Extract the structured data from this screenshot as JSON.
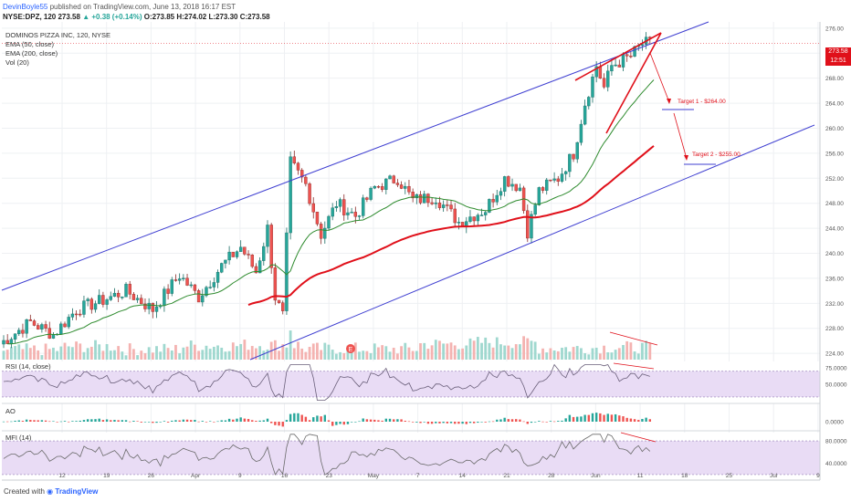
{
  "header": {
    "author": "DevinBoyle55",
    "published": "published on TradingView.com, June 13, 2018 16:17 EST",
    "symbol_line": "NYSE:DPZ, 120",
    "last": "273.58",
    "change": "+0.38 (+0.14%)",
    "ohlc": "O:273.85 H:274.02 L:273.30 C:273.58"
  },
  "legend": {
    "name": "DOMINOS PIZZA INC, 120, NYSE",
    "ema50": "EMA (50, close)",
    "ema200": "EMA (200, close)",
    "vol": "Vol (20)"
  },
  "price_tags": {
    "last": "273.58",
    "time": "12:51"
  },
  "footer": {
    "created": "Created with",
    "brand": "TradingView"
  },
  "colors": {
    "up": "#26a69a",
    "down": "#ef5350",
    "channel": "#3f3fd1",
    "wedge": "#e0101a",
    "ema50": "#2e8b2e",
    "ema200": "#e0101a",
    "osc_band": "#e9dcf5",
    "osc_line": "#7b7b7b"
  },
  "annotations": {
    "target1": "Target 1 - $264.00",
    "target2": "Target 2 - $255.00",
    "earnings_marker": "E"
  },
  "chart_data": {
    "type": "candlestick",
    "x_ticks": [
      "12",
      "19",
      "26",
      "Apr",
      "9",
      "16",
      "23",
      "May",
      "7",
      "14",
      "21",
      "28",
      "Jun",
      "11",
      "18",
      "25",
      "Jul",
      "9"
    ],
    "y_ticks": [
      "224.00",
      "228.00",
      "232.00",
      "236.00",
      "240.00",
      "244.00",
      "248.00",
      "252.00",
      "256.00",
      "260.00",
      "264.00",
      "268.00",
      "272.00",
      "276.00"
    ],
    "ylim": [
      223,
      277
    ],
    "price_path": [
      [
        0,
        225.5
      ],
      [
        8,
        229
      ],
      [
        14,
        227
      ],
      [
        20,
        231
      ],
      [
        27,
        232.5
      ],
      [
        33,
        234
      ],
      [
        40,
        231
      ],
      [
        47,
        236.5
      ],
      [
        52,
        233
      ],
      [
        58,
        238
      ],
      [
        63,
        241
      ],
      [
        67,
        237
      ],
      [
        70,
        244
      ],
      [
        72,
        233
      ],
      [
        74,
        230
      ],
      [
        76,
        254.5
      ],
      [
        80,
        251
      ],
      [
        84,
        243
      ],
      [
        88,
        248
      ],
      [
        93,
        246
      ],
      [
        98,
        250.5
      ],
      [
        104,
        252
      ],
      [
        108,
        248.5
      ],
      [
        114,
        249
      ],
      [
        120,
        245
      ],
      [
        127,
        247
      ],
      [
        132,
        252
      ],
      [
        136,
        250.5
      ],
      [
        138,
        243.5
      ],
      [
        141,
        250
      ],
      [
        146,
        252
      ],
      [
        150,
        256
      ],
      [
        153,
        264
      ],
      [
        156,
        270
      ],
      [
        158,
        266.5
      ],
      [
        160,
        270
      ],
      [
        165,
        271.5
      ],
      [
        168,
        273.5
      ],
      [
        170,
        273.58
      ]
    ],
    "volume_levels": [
      0.05,
      0.25,
      0.08,
      0.3,
      0.35,
      0.12,
      0.1,
      0.4,
      0.5,
      0.15,
      0.2
    ],
    "rsi": {
      "name": "RSI (14, close)",
      "ticks": [
        "75.0000",
        "50.0000"
      ],
      "band": [
        30,
        70
      ],
      "ylim": [
        20,
        85
      ]
    },
    "ao": {
      "name": "AO",
      "ticks": [
        "0.0000"
      ]
    },
    "mfi": {
      "name": "MFI (14)",
      "ticks": [
        "80.0000",
        "40.0000"
      ],
      "band": [
        20,
        80
      ],
      "ylim": [
        10,
        95
      ]
    }
  }
}
